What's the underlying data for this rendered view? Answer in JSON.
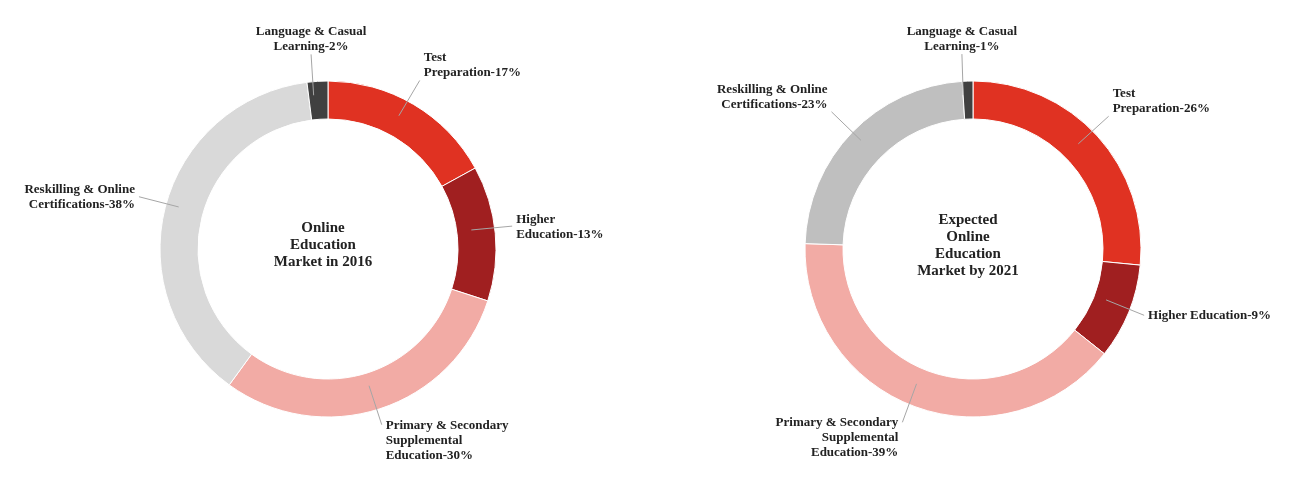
{
  "chart_data": [
    {
      "type": "donut",
      "title": "Online Education Market in 2016",
      "categories": [
        "Test Preparation",
        "Higher Education",
        "Primary & Secondary Supplemental Education",
        "Reskilling & Online Certifications",
        "Language & Casual Learning"
      ],
      "values": [
        17,
        13,
        30,
        38,
        2
      ],
      "value_labels": [
        "17%",
        "13%",
        "30%",
        "38%",
        "2%"
      ],
      "colors": [
        "#e03222",
        "#a01f20",
        "#f2aba5",
        "#d9d9d9",
        "#404040"
      ],
      "legend": false
    },
    {
      "type": "donut",
      "title": "Expected Online Education Market by 2021",
      "categories": [
        "Test Preparation",
        "Higher Education",
        "Primary & Secondary Supplemental Education",
        "Reskilling & Online Certifications",
        "Language & Casual Learning"
      ],
      "values": [
        26,
        9,
        39,
        23,
        1
      ],
      "value_labels": [
        "26%",
        "9%",
        "39%",
        "23%",
        "1%"
      ],
      "colors": [
        "#e03222",
        "#a01f20",
        "#f2aba5",
        "#bfbfbf",
        "#404040"
      ],
      "legend": false
    }
  ]
}
